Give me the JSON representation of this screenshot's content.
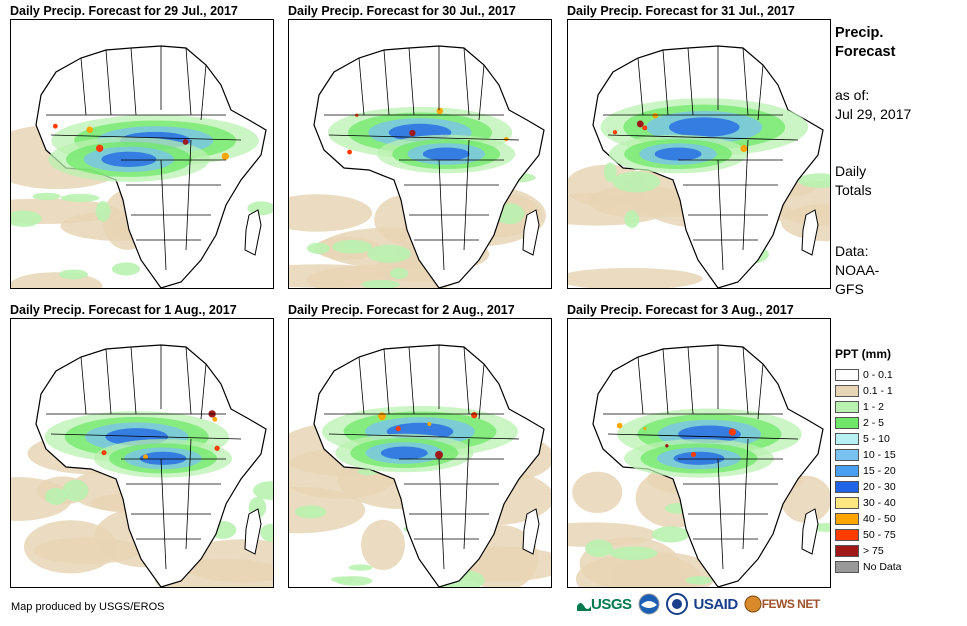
{
  "panels": [
    {
      "title": "Daily Precip. Forecast for 29 Jul., 2017"
    },
    {
      "title": "Daily Precip. Forecast for 30 Jul., 2017"
    },
    {
      "title": "Daily Precip. Forecast for 31 Jul., 2017"
    },
    {
      "title": "Daily Precip. Forecast for 1 Aug., 2017"
    },
    {
      "title": "Daily Precip. Forecast for 2 Aug., 2017"
    },
    {
      "title": "Daily Precip. Forecast for 3 Aug., 2017"
    }
  ],
  "side": {
    "heading_line1": "Precip.",
    "heading_line2": "Forecast",
    "asof_line1": "as of:",
    "asof_line2": "Jul 29, 2017",
    "totals_line1": "Daily",
    "totals_line2": "Totals",
    "data_line1": "Data:",
    "data_line2": "NOAA-",
    "data_line3": "GFS"
  },
  "legend": {
    "title": "PPT (mm)",
    "items": [
      {
        "label": "0 - 0.1",
        "color": "#ffffff"
      },
      {
        "label": "0.1 - 1",
        "color": "#e8d5b5"
      },
      {
        "label": "1 - 2",
        "color": "#b9f2b0"
      },
      {
        "label": "2 - 5",
        "color": "#6fe86a"
      },
      {
        "label": "5 - 10",
        "color": "#b7f0f2"
      },
      {
        "label": "10 - 15",
        "color": "#78c2f2"
      },
      {
        "label": "15 - 20",
        "color": "#4a9ef0"
      },
      {
        "label": "20 - 30",
        "color": "#1f63e6"
      },
      {
        "label": "30 - 40",
        "color": "#ffe680"
      },
      {
        "label": "40 - 50",
        "color": "#ffa500"
      },
      {
        "label": "50 - 75",
        "color": "#ff3c00"
      },
      {
        "label": "> 75",
        "color": "#a01818"
      },
      {
        "label": "No Data",
        "color": "#999999"
      }
    ]
  },
  "footer": {
    "credit": "Map produced by USGS/EROS"
  },
  "logos": {
    "usgs": "USGS",
    "usaid": "USAID",
    "fewsnet": "FEWS NET"
  }
}
